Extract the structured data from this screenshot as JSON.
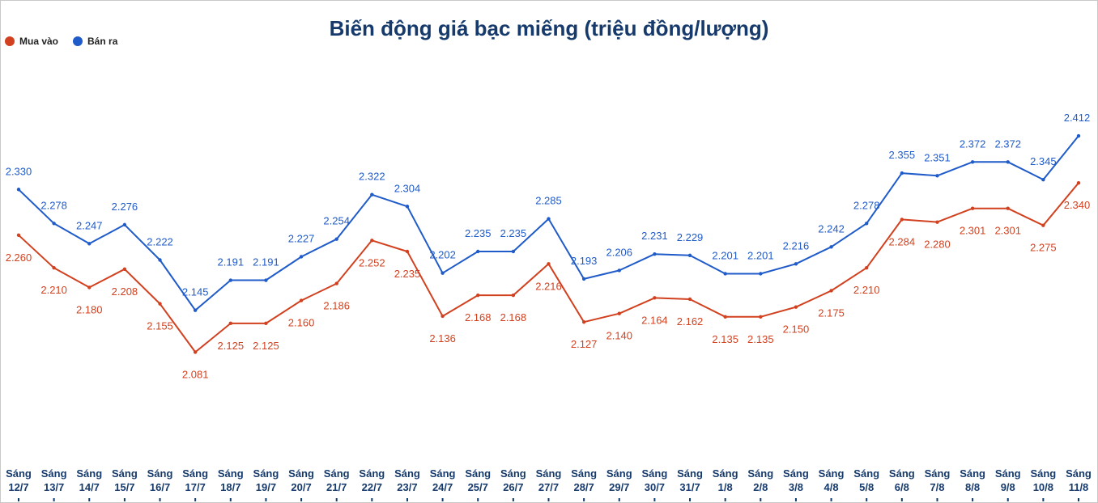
{
  "chart_data": {
    "type": "line",
    "title": "Biến động giá bạc miếng (triệu đồng/lượng)",
    "legend_position": "top-left",
    "grid": false,
    "categories": [
      [
        "Sáng",
        "12/7"
      ],
      [
        "Sáng",
        "13/7"
      ],
      [
        "Sáng",
        "14/7"
      ],
      [
        "Sáng",
        "15/7"
      ],
      [
        "Sáng",
        "16/7"
      ],
      [
        "Sáng",
        "17/7"
      ],
      [
        "Sáng",
        "18/7"
      ],
      [
        "Sáng",
        "19/7"
      ],
      [
        "Sáng",
        "20/7"
      ],
      [
        "Sáng",
        "21/7"
      ],
      [
        "Sáng",
        "22/7"
      ],
      [
        "Sáng",
        "23/7"
      ],
      [
        "Sáng",
        "24/7"
      ],
      [
        "Sáng",
        "25/7"
      ],
      [
        "Sáng",
        "26/7"
      ],
      [
        "Sáng",
        "27/7"
      ],
      [
        "Sáng",
        "28/7"
      ],
      [
        "Sáng",
        "29/7"
      ],
      [
        "Sáng",
        "30/7"
      ],
      [
        "Sáng",
        "31/7"
      ],
      [
        "Sáng",
        "1/8"
      ],
      [
        "Sáng",
        "2/8"
      ],
      [
        "Sáng",
        "3/8"
      ],
      [
        "Sáng",
        "4/8"
      ],
      [
        "Sáng",
        "5/8"
      ],
      [
        "Sáng",
        "6/8"
      ],
      [
        "Sáng",
        "7/8"
      ],
      [
        "Sáng",
        "8/8"
      ],
      [
        "Sáng",
        "9/8"
      ],
      [
        "Sáng",
        "10/8"
      ],
      [
        "Sáng",
        "11/8"
      ]
    ],
    "ylim": [
      1.85,
      2.62
    ],
    "series": [
      {
        "name": "Mua vào",
        "color": "#d2411f",
        "values": [
          2.26,
          2.21,
          2.18,
          2.208,
          2.155,
          2.081,
          2.125,
          2.125,
          2.16,
          2.186,
          2.252,
          2.235,
          2.136,
          2.168,
          2.168,
          2.216,
          2.127,
          2.14,
          2.164,
          2.162,
          2.135,
          2.135,
          2.15,
          2.175,
          2.21,
          2.284,
          2.28,
          2.301,
          2.301,
          2.275,
          2.34
        ],
        "labels": [
          "2.260",
          "2.210",
          "2.180",
          "2.208",
          "2.155",
          "2.081",
          "2.125",
          "2.125",
          "2.160",
          "2.186",
          "2.252",
          "2.235",
          "2.136",
          "2.168",
          "2.168",
          "2.216",
          "2.127",
          "2.140",
          "2.164",
          "2.162",
          "2.135",
          "2.135",
          "2.150",
          "2.175",
          "2.210",
          "2.284",
          "2.280",
          "2.301",
          "2.301",
          "2.275",
          "2.340"
        ]
      },
      {
        "name": "Bán ra",
        "color": "#1f5bc9",
        "values": [
          2.33,
          2.278,
          2.247,
          2.276,
          2.222,
          2.145,
          2.191,
          2.191,
          2.227,
          2.254,
          2.322,
          2.304,
          2.202,
          2.235,
          2.235,
          2.285,
          2.193,
          2.206,
          2.231,
          2.229,
          2.201,
          2.201,
          2.216,
          2.242,
          2.278,
          2.355,
          2.351,
          2.372,
          2.372,
          2.345,
          2.412
        ],
        "labels": [
          "2.330",
          "2.278",
          "2.247",
          "2.276",
          "2.222",
          "2.145",
          "2.191",
          "2.191",
          "2.227",
          "2.254",
          "2.322",
          "2.304",
          "2.202",
          "2.235",
          "2.235",
          "2.285",
          "2.193",
          "2.206",
          "2.231",
          "2.229",
          "2.201",
          "2.201",
          "2.216",
          "2.242",
          "2.278",
          "2.355",
          "2.351",
          "2.372",
          "2.372",
          "2.345",
          "2.412"
        ]
      }
    ]
  }
}
